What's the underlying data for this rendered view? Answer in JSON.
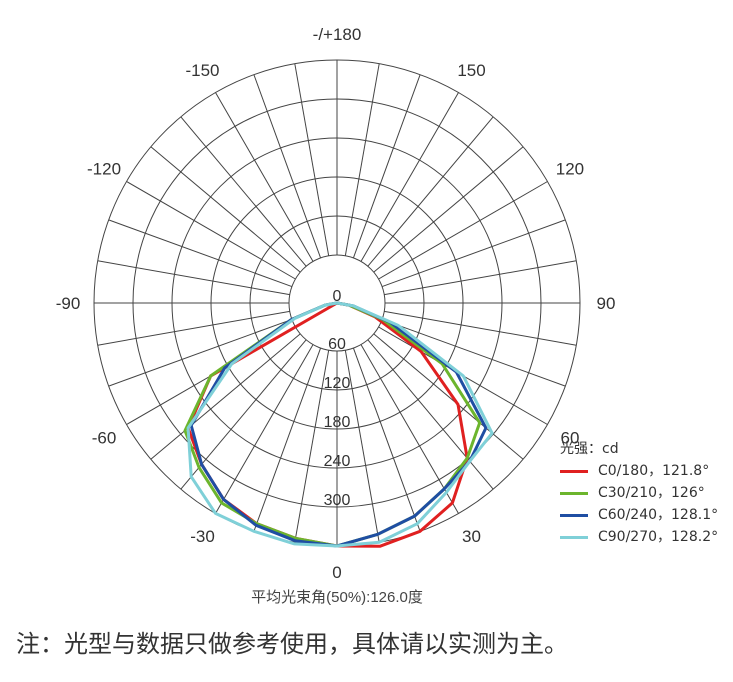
{
  "chart_data": {
    "type": "polar",
    "angle_labels": {
      "top": "-/+180",
      "left": [
        "-150",
        "-120",
        "-90",
        "-60",
        "-30"
      ],
      "right": [
        "150",
        "120",
        "90",
        "60",
        "30"
      ],
      "bottom": "0"
    },
    "radial_ticks": [
      "0",
      "60",
      "120",
      "180",
      "240",
      "300"
    ],
    "radial_max": 300,
    "unit_label": "光强：cd",
    "caption": "平均光束角(50%):126.0度",
    "series": [
      {
        "name": "C0/180，121.8°",
        "color": "#e02020",
        "points": [
          [
            -60,
            180
          ],
          [
            -50,
            240
          ],
          [
            -40,
            260
          ],
          [
            -30,
            280
          ],
          [
            -20,
            290
          ],
          [
            -10,
            295
          ],
          [
            0,
            300
          ],
          [
            10,
            305
          ],
          [
            20,
            300
          ],
          [
            30,
            285
          ],
          [
            40,
            250
          ],
          [
            50,
            195
          ],
          [
            60,
            120
          ],
          [
            70,
            50
          ],
          [
            80,
            15
          ]
        ]
      },
      {
        "name": "C30/210，126°",
        "color": "#6cb52d",
        "points": [
          [
            -80,
            15
          ],
          [
            -70,
            60
          ],
          [
            -60,
            180
          ],
          [
            -50,
            245
          ],
          [
            -40,
            265
          ],
          [
            -30,
            285
          ],
          [
            -20,
            290
          ],
          [
            -10,
            295
          ],
          [
            0,
            300
          ],
          [
            10,
            290
          ],
          [
            20,
            280
          ],
          [
            30,
            265
          ],
          [
            40,
            250
          ],
          [
            50,
            230
          ],
          [
            60,
            150
          ],
          [
            70,
            60
          ],
          [
            80,
            15
          ]
        ]
      },
      {
        "name": "C60/240，128.1°",
        "color": "#1f4ea3",
        "points": [
          [
            -80,
            15
          ],
          [
            -70,
            60
          ],
          [
            -60,
            160
          ],
          [
            -50,
            235
          ],
          [
            -40,
            260
          ],
          [
            -30,
            280
          ],
          [
            -20,
            292
          ],
          [
            -10,
            298
          ],
          [
            0,
            300
          ],
          [
            10,
            290
          ],
          [
            20,
            280
          ],
          [
            30,
            265
          ],
          [
            40,
            255
          ],
          [
            50,
            240
          ],
          [
            60,
            170
          ],
          [
            70,
            70
          ],
          [
            80,
            20
          ]
        ]
      },
      {
        "name": "C90/270，128.2°",
        "color": "#7fd0d8",
        "points": [
          [
            -80,
            15
          ],
          [
            -70,
            55
          ],
          [
            -60,
            150
          ],
          [
            -50,
            240
          ],
          [
            -40,
            280
          ],
          [
            -30,
            300
          ],
          [
            -20,
            300
          ],
          [
            -10,
            302
          ],
          [
            0,
            300
          ],
          [
            10,
            300
          ],
          [
            20,
            290
          ],
          [
            30,
            270
          ],
          [
            40,
            255
          ],
          [
            50,
            250
          ],
          [
            60,
            180
          ],
          [
            70,
            80
          ],
          [
            80,
            20
          ]
        ]
      }
    ]
  },
  "note": "注：光型与数据只做参考使用，具体请以实测为主。"
}
